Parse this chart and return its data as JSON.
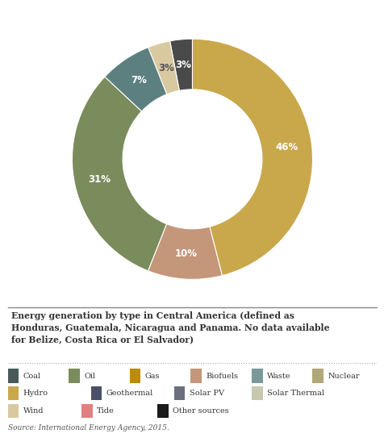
{
  "title": "Energy generation by type in Central America (defined as\nHonduras, Guatemala, Nicaragua and Panama. No data available\nfor Belize, Costa Rica or El Salvador)",
  "source": "Source: International Energy Agency, 2015.",
  "slices": [
    {
      "label": "Other sources",
      "value": 3,
      "color": "#4A4A4A",
      "text_color": "white"
    },
    {
      "label": "Wind",
      "value": 3,
      "color": "#D9C9A0",
      "text_color": "#555555"
    },
    {
      "label": "Geothermal",
      "value": 7,
      "color": "#5C8080",
      "text_color": "white"
    },
    {
      "label": "Oil",
      "value": 31,
      "color": "#7A8C5C",
      "text_color": "white"
    },
    {
      "label": "Biofuels",
      "value": 10,
      "color": "#C4967A",
      "text_color": "white"
    },
    {
      "label": "Hydro",
      "value": 46,
      "color": "#C9A84C",
      "text_color": "white"
    }
  ],
  "legend_items": [
    {
      "label": "Coal",
      "color": "#4A5A5A"
    },
    {
      "label": "Oil",
      "color": "#7A8C5C"
    },
    {
      "label": "Gas",
      "color": "#C08A10"
    },
    {
      "label": "Biofuels",
      "color": "#C4967A"
    },
    {
      "label": "Waste",
      "color": "#7A9A9A"
    },
    {
      "label": "Nuclear",
      "color": "#B0A878"
    },
    {
      "label": "Hydro",
      "color": "#C9A84C"
    },
    {
      "label": "Geothermal",
      "color": "#4A5068"
    },
    {
      "label": "Solar PV",
      "color": "#6A7080"
    },
    {
      "label": "Solar Thermal",
      "color": "#C8C8B0"
    },
    {
      "label": "Wind",
      "color": "#D9C9A0"
    },
    {
      "label": "Tide",
      "color": "#E08080"
    },
    {
      "label": "Other sources",
      "color": "#1A1A1A"
    }
  ],
  "bg_color": "#FFFFFF",
  "donut_width": 0.42,
  "startangle": 90
}
